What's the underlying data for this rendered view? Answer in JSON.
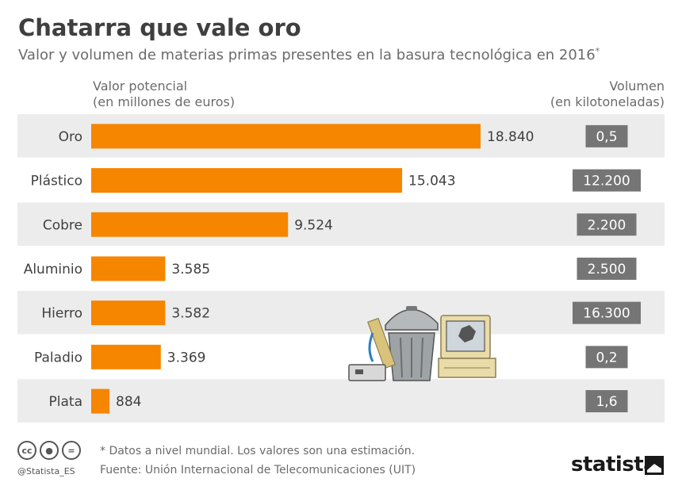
{
  "title": "Chatarra que vale oro",
  "subtitle": "Valor y volumen de materias primas presentes en la basura tecnológica en 2016",
  "subtitle_mark": "*",
  "left_header": [
    "Valor potencial",
    "(en millones de euros)"
  ],
  "right_header": [
    "Volumen",
    "(en kilotoneladas)"
  ],
  "chart_data": {
    "type": "bar",
    "orientation": "horizontal",
    "categories": [
      "Oro",
      "Plástico",
      "Cobre",
      "Aluminio",
      "Hierro",
      "Paladio",
      "Plata"
    ],
    "values": [
      18840,
      15043,
      9524,
      3585,
      3582,
      3369,
      884
    ],
    "value_labels": [
      "18.840",
      "15.043",
      "9.524",
      "3.585",
      "3.582",
      "3.369",
      "884"
    ],
    "volume_labels": [
      "0,5",
      "12.200",
      "2.200",
      "2.500",
      "16.300",
      "0,2",
      "1,6"
    ],
    "xlim": [
      0,
      18840
    ],
    "bar_color": "#f68500",
    "volume_box_color": "#757575",
    "stripe_color": "#ececec"
  },
  "footnote": "* Datos a nivel mundial. Los valores son una estimación.",
  "source": "Fuente: Unión Internacional de Telecomunicaciones (UIT)",
  "handle": "@Statista_ES",
  "brand": "statista",
  "cc_icons": [
    "cc-icon",
    "by-icon",
    "nd-icon"
  ]
}
